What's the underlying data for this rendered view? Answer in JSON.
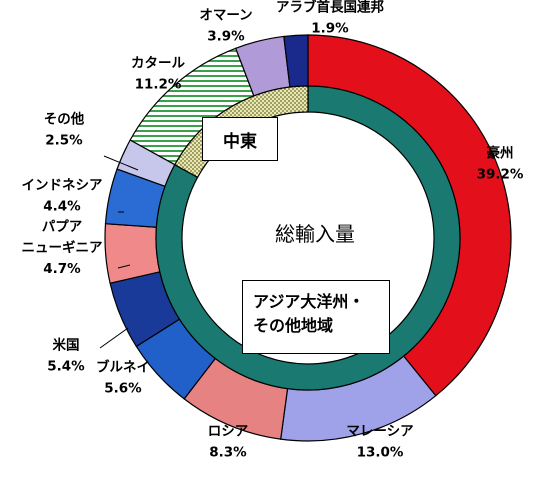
{
  "chart_data": {
    "type": "donut",
    "center_label": "総輸入量",
    "outer_ring": [
      {
        "name": "豪州",
        "value": 39.2,
        "color": "#e3101c",
        "label": "豪州",
        "value_text": "39.2%"
      },
      {
        "name": "マレーシア",
        "value": 13.0,
        "color": "#9fa2e8",
        "label": "マレーシア",
        "value_text": "13.0%"
      },
      {
        "name": "ロシア",
        "value": 8.3,
        "color": "#e68282",
        "label": "ロシア",
        "value_text": "8.3%"
      },
      {
        "name": "ブルネイ",
        "value": 5.6,
        "color": "#2060c8",
        "label": "ブルネイ",
        "value_text": "5.6%"
      },
      {
        "name": "米国",
        "value": 5.4,
        "color": "#1a3a9a",
        "label": "米国",
        "value_text": "5.4%"
      },
      {
        "name": "パプアニューギニア",
        "value": 4.7,
        "color": "#f08a8a",
        "label": "パプア\nニューギニア",
        "value_text": "4.7%"
      },
      {
        "name": "インドネシア",
        "value": 4.4,
        "color": "#2a6cd4",
        "label": "インドネシア",
        "value_text": "4.4%"
      },
      {
        "name": "その他",
        "value": 2.5,
        "color": "#c7c7ec",
        "label": "その他",
        "value_text": "2.5%"
      },
      {
        "name": "カタール",
        "value": 11.2,
        "color": "#8fd49a",
        "pattern": "hstripe",
        "label": "カタール",
        "value_text": "11.2%"
      },
      {
        "name": "オマーン",
        "value": 3.9,
        "color": "#b09ad8",
        "label": "オマーン",
        "value_text": "3.9%"
      },
      {
        "name": "アラブ首長国連邦",
        "value": 1.9,
        "color": "#1a2a8c",
        "label": "アラブ首長国連邦",
        "value_text": "1.9%"
      }
    ],
    "inner_ring": [
      {
        "name": "アジア大洋州・その他地域",
        "value": 83.0,
        "color": "#1a7a72"
      },
      {
        "name": "中東",
        "value": 17.0,
        "color": "#c8c87a",
        "pattern": "dots"
      }
    ],
    "group_labels": {
      "mideast": "中東",
      "asia": "アジア大洋州・\nその他地域"
    }
  },
  "labels": {
    "center": "総輸入量",
    "mideast": "中東",
    "asia_line1": "アジア大洋州・",
    "asia_line2": "その他地域"
  }
}
